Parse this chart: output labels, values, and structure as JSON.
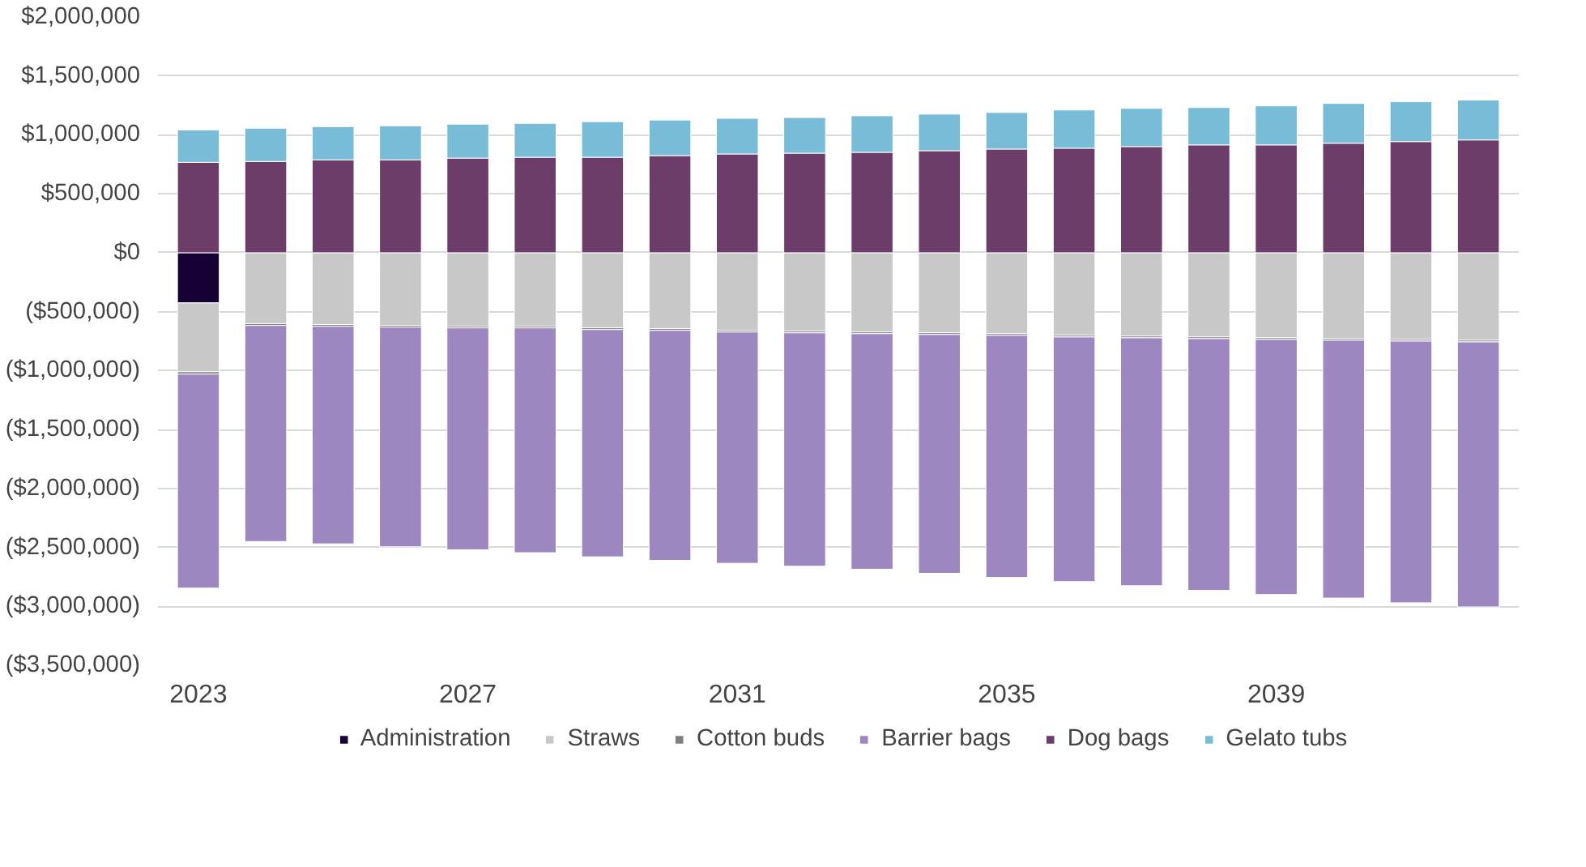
{
  "chart_data": {
    "type": "bar",
    "stacked": true,
    "categories": [
      "2023",
      null,
      null,
      null,
      "2027",
      null,
      null,
      null,
      "2031",
      null,
      null,
      null,
      "2035",
      null,
      null,
      null,
      "2039",
      null,
      null,
      null
    ],
    "series": [
      {
        "name": "Administration",
        "color": "#160033",
        "values": [
          -426000,
          null,
          null,
          null,
          null,
          null,
          null,
          null,
          null,
          null,
          null,
          null,
          null,
          null,
          null,
          null,
          null,
          null,
          null,
          null
        ]
      },
      {
        "name": "Straws",
        "color": "#c8c8c8",
        "values": [
          -584000,
          -602000,
          -609000,
          -616000,
          -623000,
          -623000,
          -637000,
          -644000,
          -658000,
          -665000,
          -672000,
          -679000,
          -686000,
          -700000,
          -707000,
          -714000,
          -721000,
          -728000,
          -735000,
          -742000
        ]
      },
      {
        "name": "Cotton buds",
        "color": "#7f7f7f",
        "values": [
          -20000,
          -15000,
          -15000,
          -15000,
          -15000,
          -15000,
          -15000,
          -15000,
          -15000,
          -15000,
          -15000,
          -15000,
          -15000,
          -15000,
          -15000,
          -15000,
          -15000,
          -15000,
          -15000,
          -15000
        ]
      },
      {
        "name": "Barrier bags",
        "color": "#9d87c0",
        "values": [
          -1816000,
          -1833000,
          -1846000,
          -1864000,
          -1882000,
          -1907000,
          -1928000,
          -1951000,
          -1962000,
          -1980000,
          -1998000,
          -2026000,
          -2054000,
          -2075000,
          -2103000,
          -2136000,
          -2164000,
          -2187000,
          -2220000,
          -2248000
        ]
      },
      {
        "name": "Dog bags",
        "color": "#6b3d68",
        "values": [
          767000,
          774000,
          788000,
          788000,
          803000,
          810000,
          810000,
          824000,
          838000,
          845000,
          852000,
          866000,
          880000,
          887000,
          901000,
          915000,
          915000,
          929000,
          943000,
          957000
        ]
      },
      {
        "name": "Gelato tubs",
        "color": "#79bcd8",
        "values": [
          275000,
          282000,
          282000,
          289000,
          288000,
          288000,
          302000,
          302000,
          302000,
          302000,
          310000,
          310000,
          310000,
          324000,
          324000,
          317000,
          331000,
          338000,
          338000,
          338000
        ]
      }
    ],
    "ylim": [
      -3500000,
      2000000
    ],
    "yticks": [
      {
        "value": 2000000,
        "label": "$2,000,000"
      },
      {
        "value": 1500000,
        "label": "$1,500,000"
      },
      {
        "value": 1000000,
        "label": "$1,000,000"
      },
      {
        "value": 500000,
        "label": "$500,000"
      },
      {
        "value": 0,
        "label": "$0"
      },
      {
        "value": -500000,
        "label": "($500,000)"
      },
      {
        "value": -1000000,
        "label": "($1,000,000)"
      },
      {
        "value": -1500000,
        "label": "($1,500,000)"
      },
      {
        "value": -2000000,
        "label": "($2,000,000)"
      },
      {
        "value": -2500000,
        "label": "($2,500,000)"
      },
      {
        "value": -3000000,
        "label": "($3,000,000)"
      },
      {
        "value": -3500000,
        "label": "($3,500,000)"
      }
    ],
    "grid": "y",
    "legend": "bottom"
  }
}
